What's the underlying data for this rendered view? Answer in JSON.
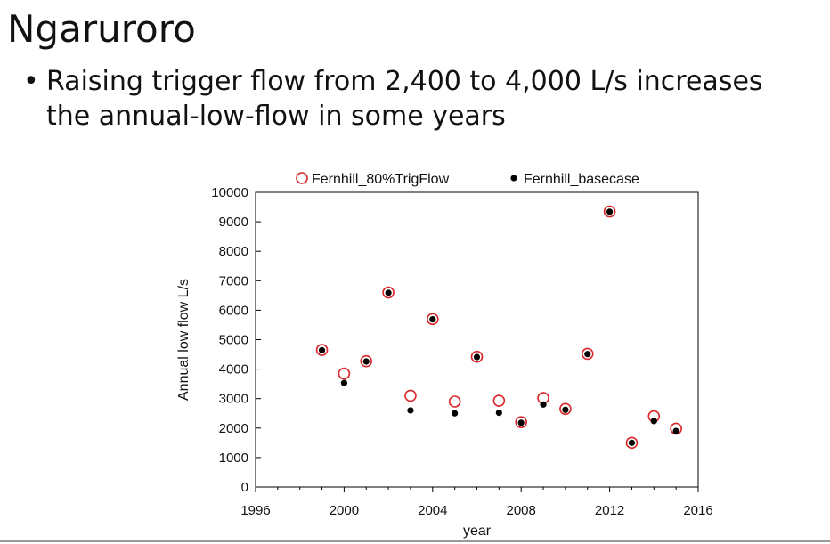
{
  "slide": {
    "title": "Ngaruroro",
    "bullet_marker": "•",
    "bullet_text": "Raising trigger flow from 2,400 to 4,000 L/s increases the annual-low-flow in some years"
  },
  "chart_data": {
    "type": "scatter",
    "title": "",
    "xlabel": "year",
    "ylabel": "Annual low flow L/s",
    "xlim": [
      1996,
      2016
    ],
    "ylim": [
      0,
      10000
    ],
    "xticks": [
      1996,
      2000,
      2004,
      2008,
      2012,
      2016
    ],
    "xtick_labels": [
      "1996",
      "2000",
      "2004",
      "2008",
      "2012",
      "2016"
    ],
    "yticks": [
      0,
      1000,
      2000,
      3000,
      4000,
      5000,
      6000,
      7000,
      8000,
      9000,
      10000
    ],
    "ytick_labels": [
      "0",
      "1000",
      "2000",
      "3000",
      "4000",
      "5000",
      "6000",
      "7000",
      "8000",
      "9000",
      "10000"
    ],
    "grid": false,
    "legend_position": "top",
    "series": [
      {
        "name": "Fernhill_80%TrigFlow",
        "marker": "open-circle",
        "color": "#d9262b",
        "points": [
          [
            1999,
            4650
          ],
          [
            2000,
            3850
          ],
          [
            2001,
            4270
          ],
          [
            2002,
            6600
          ],
          [
            2003,
            3100
          ],
          [
            2004,
            5700
          ],
          [
            2005,
            2900
          ],
          [
            2006,
            4420
          ],
          [
            2007,
            2930
          ],
          [
            2008,
            2200
          ],
          [
            2009,
            3020
          ],
          [
            2010,
            2650
          ],
          [
            2011,
            4520
          ],
          [
            2012,
            9350
          ],
          [
            2013,
            1500
          ],
          [
            2014,
            2400
          ],
          [
            2015,
            1980
          ]
        ]
      },
      {
        "name": "Fernhill_basecase",
        "marker": "filled-dot",
        "color": "#000000",
        "points": [
          [
            1999,
            4640
          ],
          [
            2000,
            3530
          ],
          [
            2001,
            4260
          ],
          [
            2002,
            6590
          ],
          [
            2003,
            2600
          ],
          [
            2004,
            5690
          ],
          [
            2005,
            2500
          ],
          [
            2006,
            4410
          ],
          [
            2007,
            2520
          ],
          [
            2008,
            2180
          ],
          [
            2009,
            2800
          ],
          [
            2010,
            2620
          ],
          [
            2011,
            4510
          ],
          [
            2012,
            9340
          ],
          [
            2013,
            1500
          ],
          [
            2014,
            2240
          ],
          [
            2015,
            1900
          ]
        ]
      }
    ]
  }
}
